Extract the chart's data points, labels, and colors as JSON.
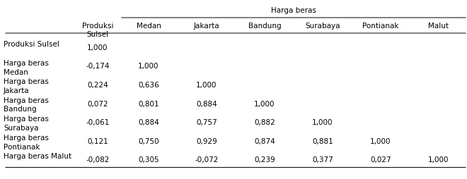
{
  "group_header": "Harga beras",
  "col0_header_line1": "Produksi",
  "col0_header_line2": "Sulsel",
  "sub_headers": [
    "Medan",
    "Jakarta",
    "Bandung",
    "Surabaya",
    "Pontianak",
    "Malut"
  ],
  "row_labels": [
    [
      "Produksi Sulsel",
      ""
    ],
    [
      "Harga beras",
      "Medan"
    ],
    [
      "Harga beras",
      "Jakarta"
    ],
    [
      "Harga beras",
      "Bandung"
    ],
    [
      "Harga beras",
      "Surabaya"
    ],
    [
      "Harga beras",
      "Pontianak"
    ],
    [
      "Harga beras Malut",
      ""
    ]
  ],
  "table_data": [
    [
      "1,000",
      "",
      "",
      "",
      "",
      "",
      ""
    ],
    [
      "-0,174",
      "1,000",
      "",
      "",
      "",
      "",
      ""
    ],
    [
      "0,224",
      "0,636",
      "1,000",
      "",
      "",
      "",
      ""
    ],
    [
      "0,072",
      "0,801",
      "0,884",
      "1,000",
      "",
      "",
      ""
    ],
    [
      "-0,061",
      "0,884",
      "0,757",
      "0,882",
      "1,000",
      "",
      ""
    ],
    [
      "0,121",
      "0,750",
      "0,929",
      "0,874",
      "0,881",
      "1,000",
      ""
    ],
    [
      "-0,082",
      "0,305",
      "-0,072",
      "0,239",
      "0,377",
      "0,027",
      "1,000"
    ]
  ],
  "bg_color": "#ffffff",
  "text_color": "#000000",
  "font_size": 7.5
}
